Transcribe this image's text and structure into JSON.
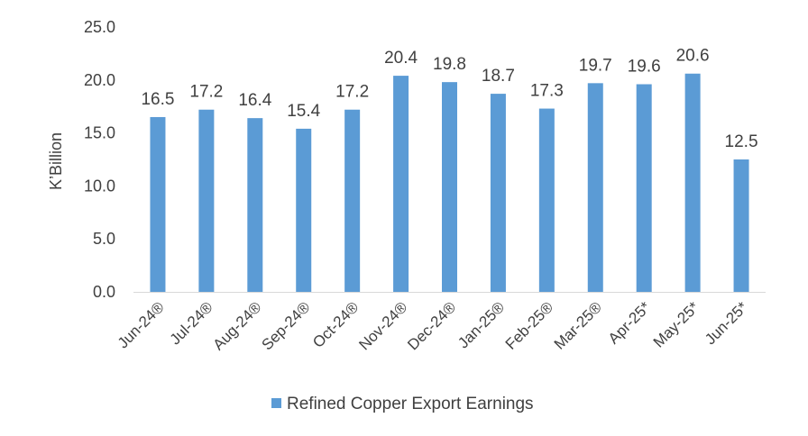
{
  "chart_data": {
    "type": "bar",
    "categories": [
      "Jun-24®",
      "Jul-24®",
      "Aug-24®",
      "Sep-24®",
      "Oct-24®",
      "Nov-24®",
      "Dec-24®",
      "Jan-25®",
      "Feb-25®",
      "Mar-25®",
      "Apr-25*",
      "May-25*",
      "Jun-25*"
    ],
    "series": [
      {
        "name": "Refined Copper Export Earnings",
        "values": [
          16.5,
          17.2,
          16.4,
          15.4,
          17.2,
          20.4,
          19.8,
          18.7,
          17.3,
          19.7,
          19.6,
          20.6,
          12.5
        ]
      }
    ],
    "data_labels": [
      "16.5",
      "17.2",
      "16.4",
      "15.4",
      "17.2",
      "20.4",
      "19.8",
      "18.7",
      "17.3",
      "19.7",
      "19.6",
      "20.6",
      "12.5"
    ],
    "title": "",
    "xlabel": "",
    "ylabel": "K’Billion",
    "ylim": [
      0,
      25
    ],
    "yticks": [
      0,
      5,
      10,
      15,
      20,
      25
    ],
    "ytick_labels": [
      "0.0",
      "5.0",
      "10.0",
      "15.0",
      "20.0",
      "25.0"
    ],
    "grid": false,
    "legend_position": "bottom",
    "bar_color": "#5B9BD5",
    "axis_color": "#D9D9D9",
    "text_color": "#404040"
  }
}
